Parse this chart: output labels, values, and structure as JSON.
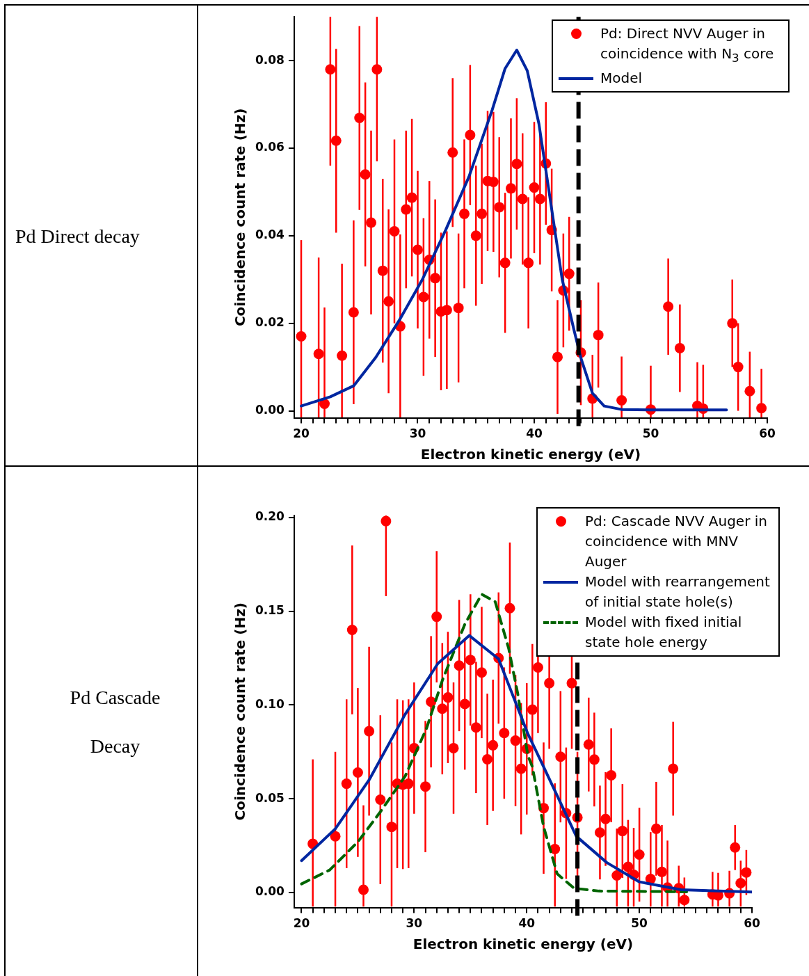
{
  "chart_data": [
    {
      "type": "scatter",
      "title": "Pd Direct decay",
      "xlabel": "Electron kinetic energy (eV)",
      "ylabel": "Coincidence count rate (Hz)",
      "xlim": [
        19.4,
        60
      ],
      "xticks": [
        20,
        {
          "value": 21,
          "label": null
        },
        {
          "value": 22,
          "label": null
        },
        {
          "value": 23,
          "label": null
        },
        {
          "value": 24,
          "label": null
        },
        {
          "value": 25,
          "label": null
        },
        {
          "value": 26,
          "label": null
        },
        {
          "value": 27,
          "label": null
        },
        {
          "value": 28,
          "label": null
        },
        {
          "value": 29,
          "label": null
        },
        30,
        {
          "value": 31,
          "label": null
        },
        {
          "value": 32,
          "label": null
        },
        {
          "value": 33,
          "label": null
        },
        {
          "value": 34,
          "label": null
        },
        {
          "value": 35,
          "label": null
        },
        {
          "value": 36,
          "label": null
        },
        {
          "value": 37,
          "label": null
        },
        {
          "value": 38,
          "label": null
        },
        {
          "value": 39,
          "label": null
        },
        40,
        {
          "value": 41,
          "label": null
        },
        {
          "value": 42,
          "label": null
        },
        {
          "value": 43,
          "label": null
        },
        {
          "value": 44,
          "label": null
        },
        {
          "value": 45,
          "label": null
        },
        {
          "value": 46,
          "label": null
        },
        {
          "value": 47,
          "label": null
        },
        {
          "value": 48,
          "label": null
        },
        {
          "value": 49,
          "label": null
        },
        50,
        {
          "value": 51,
          "label": null
        },
        {
          "value": 52,
          "label": null
        },
        {
          "value": 53,
          "label": null
        },
        {
          "value": 54,
          "label": null
        },
        {
          "value": 55,
          "label": null
        },
        {
          "value": 56,
          "label": null
        },
        {
          "value": 57,
          "label": null
        },
        {
          "value": 58,
          "label": null
        },
        {
          "value": 59,
          "label": null
        },
        60
      ],
      "ylim": [
        -0.0016,
        0.09
      ],
      "yticks": [
        {
          "value": 0,
          "label": "0.00"
        },
        {
          "value": 0.02,
          "label": "0.02"
        },
        {
          "value": 0.04,
          "label": "0.04"
        },
        {
          "value": 0.06,
          "label": "0.06"
        },
        {
          "value": 0.08,
          "label": "0.08"
        }
      ],
      "grid": false,
      "legend": "top right",
      "ref_lines": [
        {
          "axis": "x",
          "value": 43.8,
          "color": "#000000",
          "line_style": "dashed"
        }
      ],
      "series": [
        {
          "name": "Pd: Direct NVV Auger in coincidence with N$_{3}$ core",
          "color": "#ff0000",
          "marker": "circle",
          "x": [
            20,
            21.5,
            22,
            22.5,
            23,
            23.5,
            24.5,
            25,
            25.5,
            26,
            26.5,
            27,
            27.5,
            28,
            28.5,
            29,
            29.5,
            30,
            30.5,
            31,
            31.5,
            32,
            32.5,
            33,
            33.5,
            34,
            34.5,
            35,
            35.5,
            36,
            36.5,
            37,
            37.5,
            38,
            38.5,
            39,
            39.5,
            40,
            40.5,
            41,
            41.5,
            42,
            42.5,
            43,
            44,
            45,
            45.5,
            47.5,
            50,
            51.5,
            52.5,
            54,
            54.5,
            57,
            57.5,
            58.5,
            59.5
          ],
          "values": [
            0.017,
            0.013,
            0.0016,
            0.078,
            0.0617,
            0.0126,
            0.0225,
            0.0669,
            0.054,
            0.043,
            0.078,
            0.032,
            0.025,
            0.041,
            0.0193,
            0.046,
            0.0487,
            0.0368,
            0.026,
            0.0345,
            0.0303,
            0.0227,
            0.023,
            0.059,
            0.0235,
            0.045,
            0.063,
            0.04,
            0.045,
            0.0525,
            0.0523,
            0.0465,
            0.0338,
            0.0508,
            0.0564,
            0.0484,
            0.0338,
            0.051,
            0.0484,
            0.0565,
            0.0413,
            0.0123,
            0.0275,
            0.0313,
            0.0133,
            0.0028,
            0.0173,
            0.0024,
            0.0003,
            0.0238,
            0.0143,
            0.0011,
            0.0005,
            0.02,
            0.01,
            0.0045,
            0.0006
          ],
          "errors": [
            [
              -0.0015,
              0.039
            ],
            [
              -0.0015,
              0.035
            ],
            [
              -0.0015,
              0.0236
            ],
            [
              0.056,
              0.09
            ],
            0.021,
            [
              -0.0015,
              0.0336
            ],
            0.021,
            0.021,
            0.021,
            0.021,
            [
              0.057,
              0.09
            ],
            0.021,
            0.021,
            0.021,
            [
              -0.0015,
              0.0403
            ],
            0.018,
            0.018,
            0.018,
            0.018,
            0.018,
            0.018,
            0.018,
            0.018,
            0.017,
            0.017,
            0.017,
            0.016,
            0.016,
            0.016,
            0.016,
            0.016,
            0.016,
            0.016,
            0.016,
            0.015,
            0.015,
            0.015,
            0.015,
            0.015,
            0.014,
            0.014,
            0.013,
            0.013,
            0.013,
            0.012,
            [
              -0.0015,
              0.0128
            ],
            0.012,
            [
              -0.0015,
              0.0124
            ],
            [
              -0.0015,
              0.0103
            ],
            0.011,
            0.01,
            [
              -0.0015,
              0.0111
            ],
            [
              -0.0015,
              0.0105
            ],
            0.01,
            0.01,
            [
              -0.0015,
              0.0135
            ],
            [
              -0.0015,
              0.0096
            ]
          ]
        },
        {
          "type": "line",
          "name": "Model",
          "color": "#0026a0",
          "line_style": "solid",
          "marker": "none",
          "x": [
            20,
            22.5,
            24.5,
            26.4,
            28.4,
            30.4,
            32.4,
            34.4,
            36.4,
            37.5,
            38.5,
            39.4,
            40.4,
            41.4,
            42.4,
            43.4,
            44,
            45,
            46,
            47.5,
            50,
            56.5
          ],
          "values": [
            0.0011,
            0.0032,
            0.0057,
            0.0122,
            0.0206,
            0.03,
            0.0413,
            0.0535,
            0.0688,
            0.0782,
            0.0824,
            0.0777,
            0.0656,
            0.0478,
            0.03,
            0.0186,
            0.0121,
            0.004,
            0.0011,
            0.0003,
            0.0002,
            0.0002
          ]
        }
      ]
    },
    {
      "type": "scatter",
      "title": "Pd Cascade Decay",
      "xlabel": "Electron kinetic energy (eV)",
      "ylabel": "Coincidence count rate (Hz)",
      "xlim": [
        19.35,
        60
      ],
      "xticks": [
        20,
        {
          "value": 21,
          "label": null
        },
        {
          "value": 22,
          "label": null
        },
        {
          "value": 23,
          "label": null
        },
        {
          "value": 24,
          "label": null
        },
        {
          "value": 25,
          "label": null
        },
        {
          "value": 26,
          "label": null
        },
        {
          "value": 27,
          "label": null
        },
        {
          "value": 28,
          "label": null
        },
        {
          "value": 29,
          "label": null
        },
        30,
        {
          "value": 31,
          "label": null
        },
        {
          "value": 32,
          "label": null
        },
        {
          "value": 33,
          "label": null
        },
        {
          "value": 34,
          "label": null
        },
        {
          "value": 35,
          "label": null
        },
        {
          "value": 36,
          "label": null
        },
        {
          "value": 37,
          "label": null
        },
        {
          "value": 38,
          "label": null
        },
        {
          "value": 39,
          "label": null
        },
        40,
        {
          "value": 41,
          "label": null
        },
        {
          "value": 42,
          "label": null
        },
        {
          "value": 43,
          "label": null
        },
        {
          "value": 44,
          "label": null
        },
        {
          "value": 45,
          "label": null
        },
        {
          "value": 46,
          "label": null
        },
        {
          "value": 47,
          "label": null
        },
        {
          "value": 48,
          "label": null
        },
        {
          "value": 49,
          "label": null
        },
        50,
        {
          "value": 51,
          "label": null
        },
        {
          "value": 52,
          "label": null
        },
        {
          "value": 53,
          "label": null
        },
        {
          "value": 54,
          "label": null
        },
        {
          "value": 55,
          "label": null
        },
        {
          "value": 56,
          "label": null
        },
        {
          "value": 57,
          "label": null
        },
        {
          "value": 58,
          "label": null
        },
        {
          "value": 59,
          "label": null
        },
        60
      ],
      "ylim": [
        -0.008,
        0.201
      ],
      "yticks": [
        {
          "value": 0,
          "label": "0.00"
        },
        {
          "value": 0.05,
          "label": "0.05"
        },
        {
          "value": 0.1,
          "label": "0.10"
        },
        {
          "value": 0.15,
          "label": "0.15"
        },
        {
          "value": 0.2,
          "label": "0.20"
        }
      ],
      "grid": false,
      "legend": "top right",
      "ref_lines": [
        {
          "axis": "x",
          "value": 44.5,
          "color": "#000000",
          "line_style": "dashed"
        }
      ],
      "series": [
        {
          "name": "Pd: Cascade NVV Auger in coincidence with MNV Auger",
          "color": "#ff0000",
          "marker": "circle",
          "x": [
            21,
            23,
            24,
            24.5,
            25,
            25.5,
            26,
            27,
            27.5,
            28,
            28.5,
            29,
            29.5,
            30,
            31,
            31.5,
            32,
            32.5,
            33,
            33.5,
            34,
            34.5,
            35,
            35.5,
            36,
            36.5,
            37,
            37.5,
            38,
            38.5,
            39,
            39.5,
            40,
            40.5,
            41,
            41.5,
            42,
            42.5,
            43,
            43.5,
            44,
            44.5,
            45.5,
            46,
            46.5,
            47,
            47.5,
            48,
            48.5,
            49,
            49.5,
            50,
            51,
            51.5,
            52,
            52.5,
            53,
            53.5,
            54,
            56.5,
            57,
            58,
            58.5,
            59,
            59.5
          ],
          "values": [
            0.026,
            0.03,
            0.058,
            0.14,
            0.064,
            0.0015,
            0.086,
            0.0495,
            0.198,
            0.035,
            0.058,
            0.0575,
            0.058,
            0.077,
            0.0565,
            0.1017,
            0.147,
            0.098,
            0.104,
            0.077,
            0.121,
            0.1005,
            0.124,
            0.088,
            0.1173,
            0.071,
            0.0785,
            0.125,
            0.085,
            0.1516,
            0.081,
            0.066,
            0.0766,
            0.0975,
            0.12,
            0.045,
            0.1116,
            0.0232,
            0.0724,
            0.0423,
            0.1116,
            0.04,
            0.0789,
            0.0709,
            0.032,
            0.0392,
            0.0625,
            0.0091,
            0.0328,
            0.0137,
            0.0095,
            0.0202,
            0.0072,
            0.034,
            0.011,
            0.0027,
            0.066,
            0.0023,
            -0.004,
            -0.001,
            -0.0015,
            -0.0004,
            0.024,
            0.005,
            0.0107
          ],
          "errors": [
            [
              -0.0075,
              0.071
            ],
            [
              -0.0075,
              0.075
            ],
            0.045,
            0.045,
            0.045,
            [
              -0.0075,
              0.0465
            ],
            0.045,
            0.045,
            [
              0.158,
              0.201
            ],
            [
              -0.0075,
              0.08
            ],
            0.045,
            0.045,
            0.045,
            0.035,
            0.035,
            0.035,
            0.035,
            0.035,
            0.035,
            0.035,
            0.035,
            0.035,
            0.035,
            0.035,
            0.035,
            0.035,
            0.035,
            0.035,
            0.035,
            0.035,
            0.035,
            0.035,
            0.035,
            0.035,
            0.035,
            0.035,
            0.035,
            [
              -0.0075,
              0.0582
            ],
            0.035,
            0.035,
            0.035,
            0.035,
            0.025,
            0.025,
            0.025,
            0.025,
            0.025,
            [
              -0.0075,
              0.0341
            ],
            0.025,
            [
              -0.0075,
              0.0387
            ],
            [
              -0.0075,
              0.0345
            ],
            0.025,
            [
              -0.0075,
              0.0322
            ],
            0.025,
            [
              -0.0075,
              0.036
            ],
            [
              -0.0075,
              0.0277
            ],
            0.025,
            [
              -0.0075,
              0.0143
            ],
            [
              -0.0075,
              0.008
            ],
            [
              -0.0075,
              0.011
            ],
            [
              -0.0075,
              0.0105
            ],
            [
              -0.0075,
              0.0116
            ],
            0.012,
            [
              -0.0075,
              0.017
            ],
            0.012
          ]
        },
        {
          "type": "line",
          "name": "Model with rearrangement of initial state hole(s)",
          "color": "#0026a0",
          "line_style": "solid",
          "marker": "none",
          "x": [
            20,
            23,
            26,
            29.2,
            32.1,
            34.9,
            37.5,
            40.1,
            41.5,
            44.4,
            47.1,
            50,
            53.7,
            60
          ],
          "values": [
            0.017,
            0.034,
            0.06,
            0.095,
            0.122,
            0.137,
            0.1245,
            0.0846,
            0.067,
            0.03,
            0.016,
            0.0057,
            0.0015,
            0.0003
          ]
        },
        {
          "type": "line",
          "name": "Model with fixed initial state hole energy",
          "color": "#006400",
          "line_style": "dashed",
          "marker": "none",
          "x": [
            20,
            22.5,
            25,
            27,
            29.2,
            31.1,
            32.5,
            34.5,
            36,
            37.2,
            38.4,
            39.2,
            40.1,
            40.5,
            41.5,
            42.7,
            44.2,
            46.4,
            54.2
          ],
          "values": [
            0.0046,
            0.012,
            0.027,
            0.043,
            0.062,
            0.0875,
            0.113,
            0.143,
            0.159,
            0.155,
            0.13,
            0.106,
            0.073,
            0.067,
            0.035,
            0.01,
            0.0023,
            0.0008,
            0.0004
          ]
        }
      ]
    }
  ]
}
